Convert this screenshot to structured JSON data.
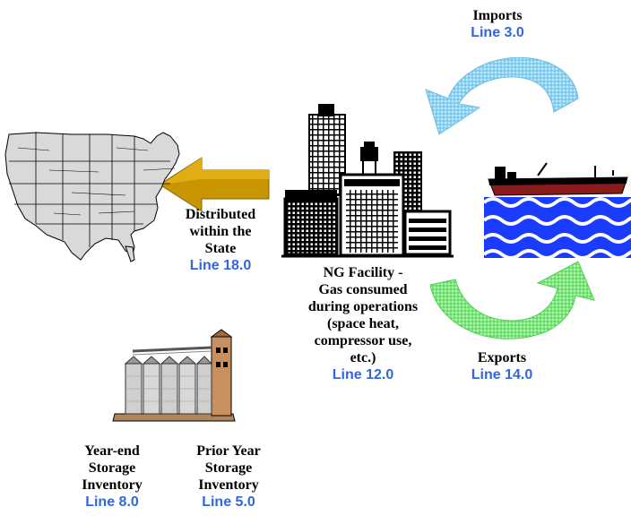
{
  "colors": {
    "line_ref": "#3366dd",
    "imports_arrow": "#7fc8ee",
    "exports_arrow": "#66e066",
    "distributed_arrow": "#c89400",
    "water": "#1a3cff"
  },
  "icons": {
    "us_map": "usa-map-icon",
    "facility": "city-buildings-icon",
    "ship": "tanker-ship-icon",
    "storage": "storage-silos-icon"
  },
  "imports": {
    "title": "Imports",
    "line": "Line 3.0"
  },
  "exports": {
    "title": "Exports",
    "line": "Line 14.0"
  },
  "distributed": {
    "text_1": "Distributed",
    "text_2": "within the",
    "text_3": "State",
    "line": "Line 18.0"
  },
  "facility": {
    "text_1": "NG Facility -",
    "text_2": "Gas consumed",
    "text_3": "during operations",
    "text_4": "(space heat,",
    "text_5": "compressor use,",
    "text_6": "etc.)",
    "line": "Line 12.0"
  },
  "year_end": {
    "text_1": "Year-end",
    "text_2": "Storage",
    "text_3": "Inventory",
    "line": "Line 8.0"
  },
  "prior_year": {
    "text_1": "Prior Year",
    "text_2": "Storage",
    "text_3": "Inventory",
    "line": "Line 5.0"
  }
}
